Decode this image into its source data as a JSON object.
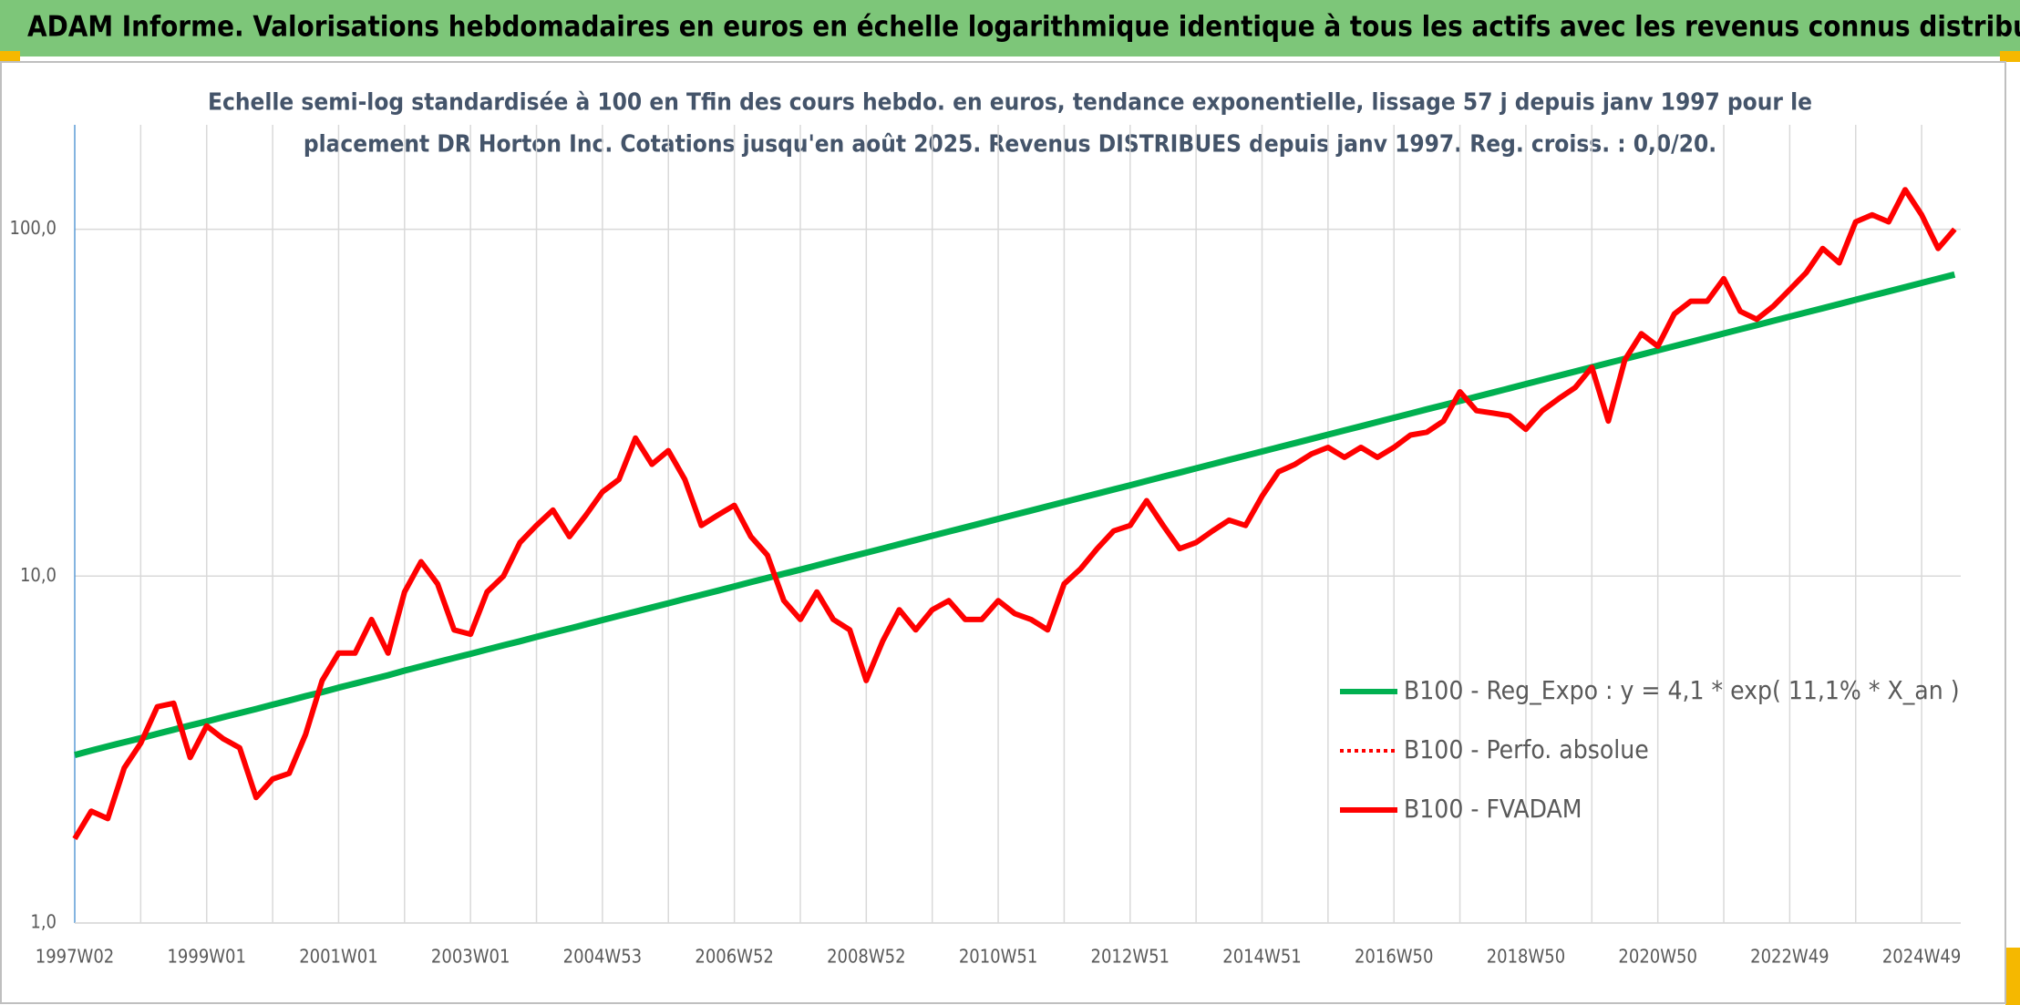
{
  "header": {
    "title": "ADAM Informe. Valorisations hebdomadaires en euros en échelle logarithmique identique à tous les actifs avec les revenus connus distribués"
  },
  "chart_data": {
    "type": "line",
    "subtitle": [
      "Echelle semi-log standardisée à 100 en Tfin des cours hebdo. en euros, tendance exponentielle, lissage 57 j depuis janv 1997 pour le",
      "placement DR Horton Inc. Cotations jusqu'en août 2025. Revenus DISTRIBUES depuis janv 1997. Reg. croiss. : 0,0/20."
    ],
    "categories": [
      "1997W02",
      null,
      null,
      null,
      null,
      null,
      null,
      null,
      "1999W01",
      null,
      null,
      null,
      null,
      null,
      null,
      null,
      "2001W01",
      null,
      null,
      null,
      null,
      null,
      null,
      null,
      "2003W01",
      null,
      null,
      null,
      null,
      null,
      null,
      null,
      "2004W53",
      null,
      null,
      null,
      null,
      null,
      null,
      null,
      "2006W52",
      null,
      null,
      null,
      null,
      null,
      null,
      null,
      "2008W52",
      null,
      null,
      null,
      null,
      null,
      null,
      null,
      "2010W51",
      null,
      null,
      null,
      null,
      null,
      null,
      null,
      "2012W51",
      null,
      null,
      null,
      null,
      null,
      null,
      null,
      "2014W51",
      null,
      null,
      null,
      null,
      null,
      null,
      null,
      "2016W50",
      null,
      null,
      null,
      null,
      null,
      null,
      null,
      "2018W50",
      null,
      null,
      null,
      null,
      null,
      null,
      null,
      "2020W50",
      null,
      null,
      null,
      null,
      null,
      null,
      null,
      "2022W49",
      null,
      null,
      null,
      null,
      null,
      null,
      null,
      "2024W49",
      null,
      null
    ],
    "series": [
      {
        "name": "B100 - Reg_Expo : y = 4,1 * exp( 11,1% *  X_an )",
        "color": "#00b050",
        "dash": false,
        "values": [
          3.05,
          3.14,
          3.23,
          3.32,
          3.41,
          3.51,
          3.61,
          3.71,
          3.81,
          3.92,
          4.03,
          4.14,
          4.26,
          4.38,
          4.51,
          4.63,
          4.77,
          4.9,
          5.04,
          5.18,
          5.34,
          5.49,
          5.65,
          5.81,
          5.97,
          6.14,
          6.32,
          6.49,
          6.68,
          6.87,
          7.06,
          7.26,
          7.47,
          7.68,
          7.9,
          8.12,
          8.35,
          8.59,
          8.83,
          9.08,
          9.34,
          9.61,
          9.88,
          10.16,
          10.44,
          10.74,
          11.05,
          11.36,
          11.68,
          12.01,
          12.36,
          12.71,
          13.07,
          13.44,
          13.82,
          14.21,
          14.62,
          15.03,
          15.46,
          15.9,
          16.35,
          16.81,
          17.29,
          17.78,
          18.28,
          18.8,
          19.34,
          19.88,
          20.45,
          21.03,
          21.63,
          22.24,
          22.87,
          23.52,
          24.19,
          24.87,
          25.58,
          26.3,
          27.05,
          27.82,
          28.61,
          29.42,
          30.26,
          31.11,
          31.99,
          32.9,
          33.83,
          34.79,
          35.78,
          36.79,
          37.84,
          38.91,
          40.02,
          41.15,
          42.32,
          43.52,
          44.75,
          46.02,
          47.32,
          48.66,
          50.06,
          51.48,
          52.94,
          54.44,
          55.98,
          57.57,
          59.2,
          60.88,
          62.61,
          64.38,
          66.2,
          68.08,
          70.01,
          71.99,
          74.03
        ]
      },
      {
        "name": "B100 - Perfo. absolue",
        "color": "#ff0000",
        "dash": true,
        "values": [
          1.75,
          2.1,
          2.0,
          2.8,
          3.3,
          4.2,
          4.3,
          3.0,
          3.7,
          3.4,
          3.2,
          2.3,
          2.6,
          2.7,
          3.5,
          5.0,
          6.0,
          6.0,
          7.5,
          6.0,
          9.0,
          11.0,
          9.5,
          7.0,
          6.8,
          9.0,
          10.0,
          12.5,
          14.0,
          15.5,
          13.0,
          15.0,
          17.5,
          19.0,
          25.0,
          21.0,
          23.0,
          19.0,
          14.0,
          15.0,
          16.0,
          13.0,
          11.5,
          8.5,
          7.5,
          9.0,
          7.5,
          7.0,
          5.0,
          6.5,
          8.0,
          7.0,
          8.0,
          8.5,
          7.5,
          7.5,
          8.5,
          7.8,
          7.5,
          7.0,
          9.5,
          10.5,
          12.0,
          13.5,
          14.0,
          16.5,
          14.0,
          12.0,
          12.5,
          13.5,
          14.5,
          14.0,
          17.0,
          20.0,
          21.0,
          22.5,
          23.5,
          22.0,
          23.5,
          22.0,
          23.5,
          25.5,
          26.0,
          28.0,
          34.0,
          30.0,
          29.5,
          29.0,
          26.5,
          30.0,
          32.5,
          35.0,
          40.0,
          28.0,
          42.0,
          50.0,
          46.0,
          57.0,
          62.0,
          62.0,
          72.0,
          58.0,
          55.0,
          60.0,
          67.0,
          75.0,
          88.0,
          80.0,
          105.0,
          110.0,
          105.0,
          130.0,
          110.0,
          88.0,
          100.0
        ]
      },
      {
        "name": "B100 - FVADAM",
        "color": "#ff0000",
        "dash": false,
        "values": [
          1.75,
          2.1,
          2.0,
          2.8,
          3.3,
          4.2,
          4.3,
          3.0,
          3.7,
          3.4,
          3.2,
          2.3,
          2.6,
          2.7,
          3.5,
          5.0,
          6.0,
          6.0,
          7.5,
          6.0,
          9.0,
          11.0,
          9.5,
          7.0,
          6.8,
          9.0,
          10.0,
          12.5,
          14.0,
          15.5,
          13.0,
          15.0,
          17.5,
          19.0,
          25.0,
          21.0,
          23.0,
          19.0,
          14.0,
          15.0,
          16.0,
          13.0,
          11.5,
          8.5,
          7.5,
          9.0,
          7.5,
          7.0,
          5.0,
          6.5,
          8.0,
          7.0,
          8.0,
          8.5,
          7.5,
          7.5,
          8.5,
          7.8,
          7.5,
          7.0,
          9.5,
          10.5,
          12.0,
          13.5,
          14.0,
          16.5,
          14.0,
          12.0,
          12.5,
          13.5,
          14.5,
          14.0,
          17.0,
          20.0,
          21.0,
          22.5,
          23.5,
          22.0,
          23.5,
          22.0,
          23.5,
          25.5,
          26.0,
          28.0,
          34.0,
          30.0,
          29.5,
          29.0,
          26.5,
          30.0,
          32.5,
          35.0,
          40.0,
          28.0,
          42.0,
          50.0,
          46.0,
          57.0,
          62.0,
          62.0,
          72.0,
          58.0,
          55.0,
          60.0,
          67.0,
          75.0,
          88.0,
          80.0,
          105.0,
          110.0,
          105.0,
          130.0,
          110.0,
          88.0,
          100.0
        ]
      }
    ],
    "ylim": [
      1,
      200
    ],
    "log": true,
    "yticks": [
      {
        "value": 1,
        "label": "1,0"
      },
      {
        "value": 10,
        "label": "10,0"
      },
      {
        "value": 100,
        "label": "100,0"
      }
    ],
    "grid": true,
    "legend": "lower right"
  }
}
